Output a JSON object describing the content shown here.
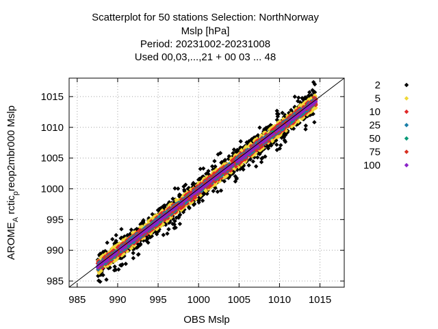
{
  "chart_data": {
    "type": "scatter",
    "title_lines": [
      "Scatterplot for   50 stations Selection: NorthNorway",
      "Mslp [hPa]",
      "Period: 20231002-20231008",
      "Used  00,03,...,21  + 00 03 ... 48"
    ],
    "xlabel": "OBS Mslp",
    "ylabel": "AROME_Arctic_preop2mbr000 Mslp",
    "ylabel_parts": {
      "main": "AROME",
      "sub1": "A",
      "mid": " rctic",
      "sub2": "p",
      "tail": "reop2mbr000 Mslp"
    },
    "xlim": [
      984,
      1018
    ],
    "ylim": [
      984,
      1018
    ],
    "xticks": [
      985,
      990,
      995,
      1000,
      1005,
      1010,
      1015
    ],
    "yticks": [
      985,
      990,
      995,
      1000,
      1005,
      1010,
      1015
    ],
    "grid": true,
    "diagonal": true,
    "legend_position": "right",
    "series": [
      {
        "name": "2",
        "color": "#000000",
        "band": [
          0.9,
          1.8
        ]
      },
      {
        "name": "5",
        "color": "#f0d838",
        "band": [
          0.6,
          1.2
        ]
      },
      {
        "name": "10",
        "color": "#e02828",
        "band": [
          0.4,
          0.8
        ]
      },
      {
        "name": "25",
        "color": "#1a7fa8",
        "band": [
          0.2,
          0.5
        ]
      },
      {
        "name": "50",
        "color": "#0a9a78",
        "band": [
          0.1,
          0.3
        ]
      },
      {
        "name": "75",
        "color": "#d83020",
        "band": [
          0.1,
          0.25
        ]
      },
      {
        "name": "100",
        "color": "#8a22c8",
        "band": [
          0.0,
          0.15
        ]
      }
    ]
  }
}
